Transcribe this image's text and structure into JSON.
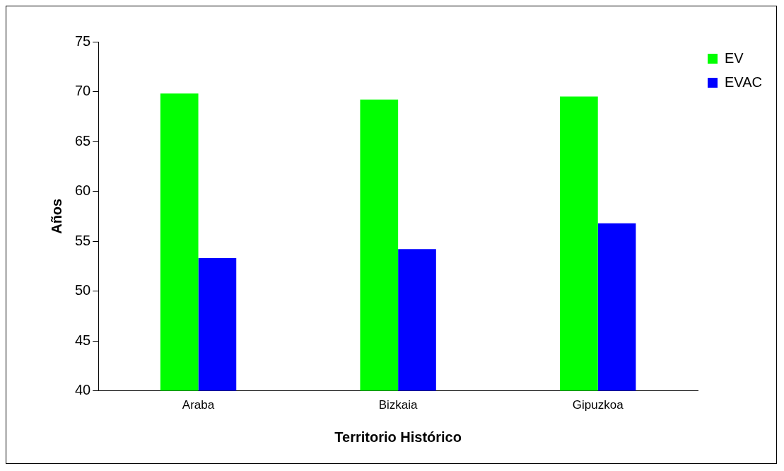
{
  "chart_data": {
    "type": "bar",
    "xlabel": "Territorio Histórico",
    "ylabel": "Años",
    "categories": [
      "Araba",
      "Bizkaia",
      "Gipuzkoa"
    ],
    "series": [
      {
        "name": "EV",
        "color": "#00ff00",
        "values": [
          69.8,
          69.2,
          69.5
        ]
      },
      {
        "name": "EVAC",
        "color": "#0000ff",
        "values": [
          53.3,
          54.2,
          56.8
        ]
      }
    ],
    "ylim": [
      40,
      75
    ],
    "yticks": [
      40,
      45,
      50,
      55,
      60,
      65,
      70,
      75
    ],
    "grid": false,
    "legend": "right"
  }
}
